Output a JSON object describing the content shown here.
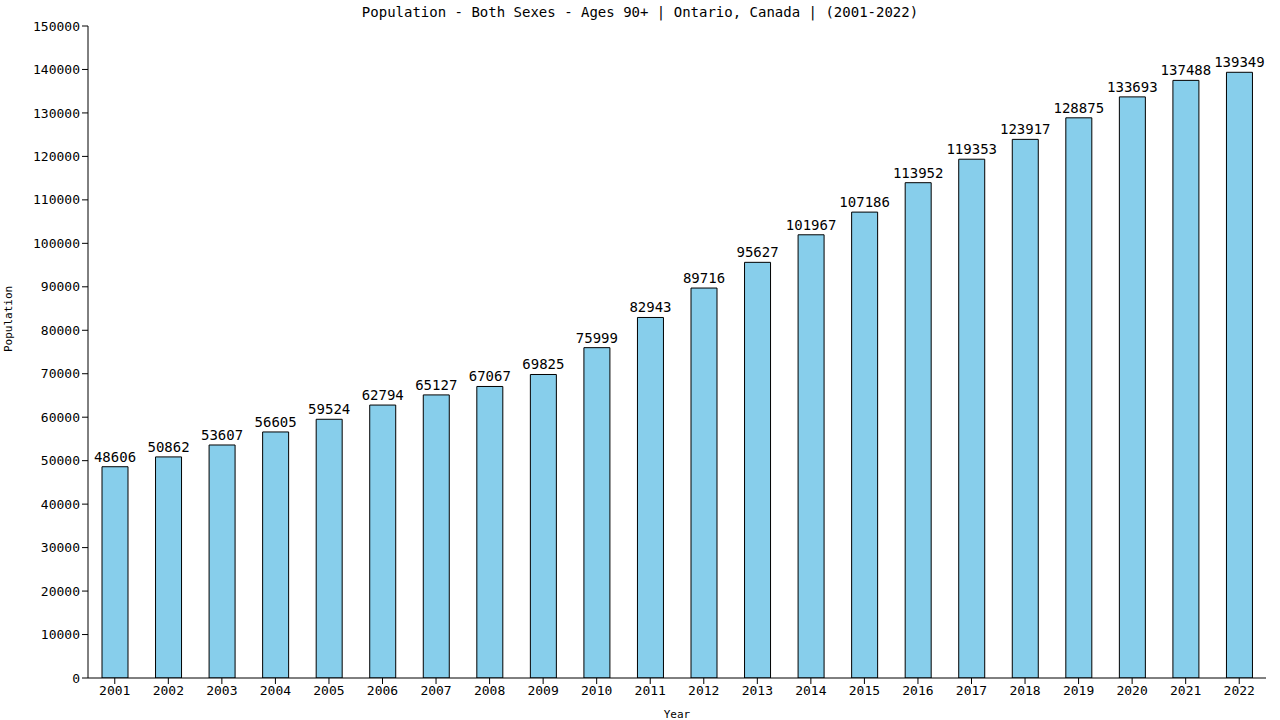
{
  "chart_data": {
    "type": "bar",
    "title": "Population - Both Sexes - Ages 90+ | Ontario, Canada |  (2001-2022)",
    "x_label": "Year",
    "y_label": "Population",
    "categories": [
      "2001",
      "2002",
      "2003",
      "2004",
      "2005",
      "2006",
      "2007",
      "2008",
      "2009",
      "2010",
      "2011",
      "2012",
      "2013",
      "2014",
      "2015",
      "2016",
      "2017",
      "2018",
      "2019",
      "2020",
      "2021",
      "2022"
    ],
    "values": [
      48606,
      50862,
      53607,
      56605,
      59524,
      62794,
      65127,
      67067,
      69825,
      75999,
      82943,
      89716,
      95627,
      101967,
      107186,
      113952,
      119353,
      123917,
      128875,
      133693,
      137488,
      139349
    ],
    "color": "#87ceeb",
    "ylim": [
      0,
      150000
    ],
    "yticks": [
      0,
      10000,
      20000,
      30000,
      40000,
      50000,
      60000,
      70000,
      80000,
      90000,
      100000,
      110000,
      120000,
      130000,
      140000,
      150000
    ],
    "grid": false,
    "data_labels": true
  }
}
